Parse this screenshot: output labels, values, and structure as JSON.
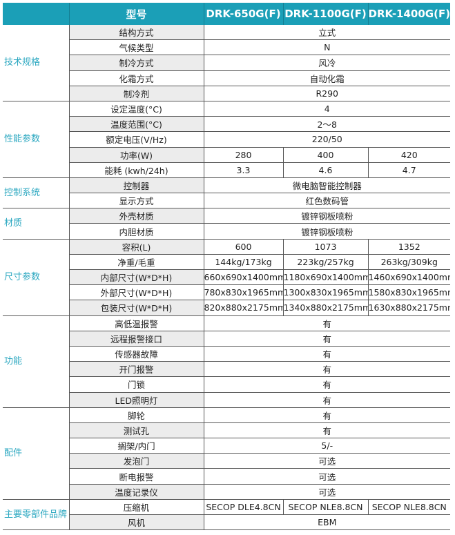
{
  "header": {
    "label": "型号",
    "models": [
      "DRK-650G(F)",
      "DRK-1100G(F)",
      "DRK-1400G(F)"
    ]
  },
  "groups": [
    {
      "name": "技术规格",
      "rows": [
        [
          "结构方式",
          "立式"
        ],
        [
          "气候类型",
          "N"
        ],
        [
          "制冷方式",
          "风冷"
        ],
        [
          "化霜方式",
          "自动化霜"
        ],
        [
          "制冷剂",
          "R290"
        ]
      ]
    },
    {
      "name": "性能参数",
      "rows": [
        [
          "设定温度(°C)",
          "4"
        ],
        [
          "温度范围(°C)",
          "2～8"
        ],
        [
          "额定电压(V/Hz)",
          "220/50"
        ],
        [
          "功率(W)",
          "280",
          "400",
          "420"
        ],
        [
          "能耗 (kwh/24h)",
          "3.3",
          "4.6",
          "4.7"
        ]
      ]
    },
    {
      "name": "控制系统",
      "rows": [
        [
          "控制器",
          "微电脑智能控制器"
        ],
        [
          "显示方式",
          "红色数码管"
        ]
      ]
    },
    {
      "name": "材质",
      "rows": [
        [
          "外壳材质",
          "镀锌钢板喷粉"
        ],
        [
          "内胆材质",
          "镀锌钢板喷粉"
        ]
      ]
    },
    {
      "name": "尺寸参数",
      "rows": [
        [
          "容积(L)",
          "600",
          "1073",
          "1352"
        ],
        [
          "净重/毛重",
          "144kg/173kg",
          "223kg/257kg",
          "263kg/309kg"
        ],
        [
          "内部尺寸(W*D*H)",
          "660x690x1400mm",
          "1180x690x1400mm",
          "1460x690x1400mm"
        ],
        [
          "外部尺寸(W*D*H)",
          "780x830x1965mm",
          "1300x830x1965mm",
          "1580x830x1965mm"
        ],
        [
          "包装尺寸(W*D*H)",
          "820x880x2175mm",
          "1340x880x2175mm",
          "1630x880x2175mm"
        ]
      ]
    },
    {
      "name": "功能",
      "rows": [
        [
          "高低温报警",
          "有"
        ],
        [
          "远程报警接口",
          "有"
        ],
        [
          "传感器故障",
          "有"
        ],
        [
          "开门报警",
          "有"
        ],
        [
          "门锁",
          "有"
        ],
        [
          "LED照明灯",
          "有"
        ]
      ]
    },
    {
      "name": "配件",
      "rows": [
        [
          "脚轮",
          "有"
        ],
        [
          "测试孔",
          "有"
        ],
        [
          "搁架/内门",
          "5/-"
        ],
        [
          "发泡门",
          "可选"
        ],
        [
          "断电报警",
          "可选"
        ],
        [
          "温度记录仪",
          "可选"
        ]
      ]
    },
    {
      "name": "主要零部件品牌",
      "rows": [
        [
          "压缩机",
          "SECOP DLE4.8CN",
          "SECOP NLE8.8CN",
          "SECOP NLE8.8CN"
        ],
        [
          "风机",
          "EBM"
        ]
      ]
    }
  ],
  "colors": {
    "header": "#1b9fb7",
    "category_text": "#2aa7c0",
    "stripe": "#ececec"
  }
}
